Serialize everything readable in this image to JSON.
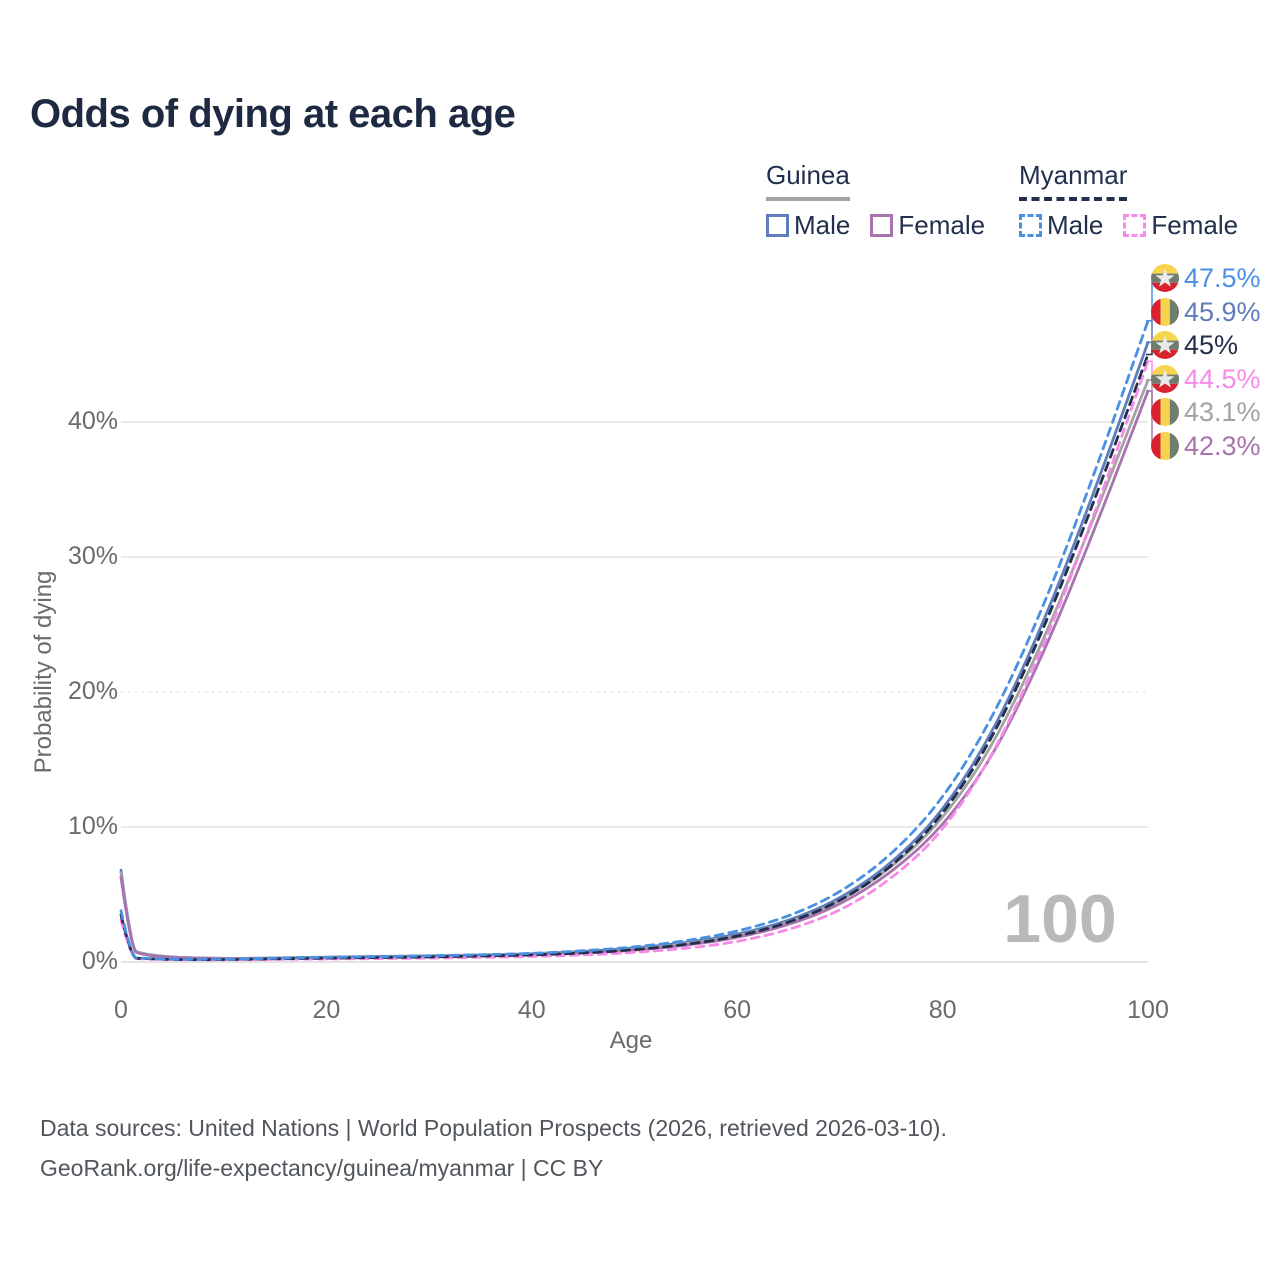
{
  "header": {
    "title": "Odds of dying at each age"
  },
  "legend": {
    "groups": [
      {
        "label": "Guinea",
        "underline_series": 4,
        "items": [
          {
            "label": "Male",
            "series": 1
          },
          {
            "label": "Female",
            "series": 5
          }
        ]
      },
      {
        "label": "Myanmar",
        "underline_series": 2,
        "items": [
          {
            "label": "Male",
            "series": 0
          },
          {
            "label": "Female",
            "series": 3
          }
        ]
      }
    ]
  },
  "chart_data": {
    "type": "line",
    "title": "Odds of dying at each age",
    "xlabel": "Age",
    "ylabel": "Probability of dying",
    "xlim": [
      0,
      100
    ],
    "ylim": [
      0,
      48.5
    ],
    "x_ticks": [
      0,
      20,
      40,
      60,
      80,
      100
    ],
    "y_ticks": [
      {
        "label": "0%",
        "value": 0,
        "style": "solid"
      },
      {
        "label": "10%",
        "value": 10,
        "style": "solid"
      },
      {
        "label": "20%",
        "value": 20,
        "style": "dotted"
      },
      {
        "label": "30%",
        "value": 30,
        "style": "solid"
      },
      {
        "label": "40%",
        "value": 40,
        "style": "solid"
      }
    ],
    "grid": true,
    "legend_position": "top-right",
    "age_counter": "100",
    "ages": [
      0,
      1,
      2,
      5,
      10,
      15,
      20,
      25,
      30,
      35,
      40,
      45,
      50,
      55,
      60,
      65,
      70,
      75,
      80,
      85,
      90,
      95,
      100
    ],
    "series": [
      {
        "id": "myanmar-male",
        "country": "Myanmar",
        "sex": "Male",
        "color": "#4a90e2",
        "dash": true,
        "flag": "myanmar",
        "end_label": "47.5%",
        "values": [
          3.8,
          0.35,
          0.28,
          0.2,
          0.2,
          0.28,
          0.35,
          0.4,
          0.46,
          0.53,
          0.63,
          0.82,
          1.1,
          1.55,
          2.25,
          3.35,
          5.1,
          7.9,
          12.0,
          18.2,
          26.6,
          36.6,
          47.5
        ]
      },
      {
        "id": "guinea-male",
        "country": "Guinea",
        "sex": "Male",
        "color": "#5f7dbc",
        "dash": false,
        "flag": "guinea",
        "end_label": "45.9%",
        "values": [
          6.8,
          0.95,
          0.6,
          0.35,
          0.26,
          0.3,
          0.36,
          0.41,
          0.46,
          0.52,
          0.61,
          0.78,
          1.02,
          1.42,
          2.02,
          3.02,
          4.65,
          7.25,
          11.1,
          17.1,
          25.4,
          35.3,
          45.9
        ]
      },
      {
        "id": "myanmar-all",
        "country": "Myanmar",
        "sex": "Both",
        "color": "#232f4b",
        "dash": true,
        "flag": "myanmar",
        "end_label": "45%",
        "values": [
          3.5,
          0.32,
          0.26,
          0.18,
          0.18,
          0.24,
          0.29,
          0.33,
          0.38,
          0.44,
          0.52,
          0.67,
          0.9,
          1.28,
          1.88,
          2.88,
          4.45,
          7.0,
          10.8,
          16.7,
          24.9,
          34.6,
          45.0
        ]
      },
      {
        "id": "myanmar-female",
        "country": "Myanmar",
        "sex": "Female",
        "color": "#f78ae8",
        "dash": true,
        "flag": "myanmar",
        "end_label": "44.5%",
        "values": [
          3.1,
          0.28,
          0.23,
          0.16,
          0.15,
          0.19,
          0.22,
          0.25,
          0.29,
          0.34,
          0.41,
          0.52,
          0.7,
          1.0,
          1.48,
          2.35,
          3.75,
          6.1,
          9.6,
          15.4,
          23.6,
          33.6,
          44.5
        ]
      },
      {
        "id": "guinea-all",
        "country": "Guinea",
        "sex": "Both",
        "color": "#a3a3a3",
        "dash": false,
        "flag": "guinea",
        "end_label": "43.1%",
        "values": [
          6.6,
          0.9,
          0.58,
          0.33,
          0.25,
          0.28,
          0.33,
          0.38,
          0.43,
          0.49,
          0.57,
          0.72,
          0.93,
          1.32,
          1.9,
          2.88,
          4.45,
          6.95,
          10.5,
          16.1,
          24.1,
          33.4,
          43.1
        ]
      },
      {
        "id": "guinea-female",
        "country": "Guinea",
        "sex": "Female",
        "color": "#a873ae",
        "dash": false,
        "flag": "guinea",
        "end_label": "42.3%",
        "values": [
          6.3,
          0.85,
          0.55,
          0.31,
          0.23,
          0.26,
          0.3,
          0.34,
          0.39,
          0.45,
          0.52,
          0.66,
          0.86,
          1.22,
          1.78,
          2.72,
          4.2,
          6.6,
          10.0,
          15.3,
          23.1,
          32.4,
          42.3
        ]
      }
    ],
    "draw_order": [
      1,
      4,
      5,
      3,
      2,
      0
    ],
    "flag_colors": {
      "red": "#d8222d",
      "yellow": "#f6d44d",
      "green": "#6f7c6e",
      "star": "#e9e9e9"
    }
  },
  "footer": {
    "line1": "Data sources: United Nations | World Population Prospects (2026, retrieved 2026-03-10).",
    "line2": "GeoRank.org/life-expectancy/guinea/myanmar | CC BY"
  }
}
